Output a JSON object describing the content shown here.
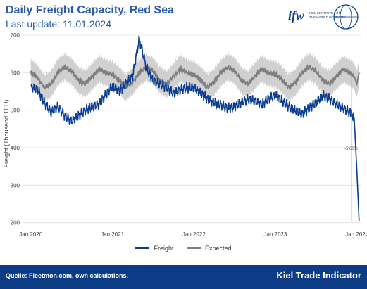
{
  "header": {
    "title": "Daily Freight Capacity, Red Sea",
    "subtitle": "Last update: 11.01.2024",
    "logo_mark": "ifw",
    "logo_text_line1": "KIEL INSTITUTE FOR",
    "logo_text_line2": "THE WORLD ECONOMY"
  },
  "footer": {
    "source": "Quelle: Fleetmon.com, own calculations.",
    "brand": "Kiel Trade Indicator"
  },
  "colors": {
    "freight": "#0b3d91",
    "expected": "#7f7f7f",
    "band": "#c8c8c8",
    "footer_bg": "#0c3c86"
  },
  "chart_data": {
    "type": "line",
    "ylabel": "Freight (Thousand TEU)",
    "ylim": [
      190,
      700
    ],
    "yticks": [
      200,
      300,
      400,
      500,
      600,
      700
    ],
    "xticks": [
      "Jan 2020",
      "Jan 2021",
      "Jan 2022",
      "Jan 2023",
      "Jan 2024"
    ],
    "annotation": "-5.60%",
    "series": [
      {
        "name": "Freight",
        "x": [
          "2020-01-01",
          "2020-02-01",
          "2020-03-01",
          "2020-04-01",
          "2020-05-01",
          "2020-06-01",
          "2020-07-01",
          "2020-08-01",
          "2020-09-01",
          "2020-10-01",
          "2020-11-01",
          "2020-12-01",
          "2021-01-01",
          "2021-02-01",
          "2021-03-01",
          "2021-04-01",
          "2021-05-01",
          "2021-06-01",
          "2021-07-01",
          "2021-08-01",
          "2021-09-01",
          "2021-10-01",
          "2021-11-01",
          "2021-12-01",
          "2022-01-01",
          "2022-02-01",
          "2022-03-01",
          "2022-04-01",
          "2022-05-01",
          "2022-06-01",
          "2022-07-01",
          "2022-08-01",
          "2022-09-01",
          "2022-10-01",
          "2022-11-01",
          "2022-12-01",
          "2023-01-01",
          "2023-02-01",
          "2023-03-01",
          "2023-04-01",
          "2023-05-01",
          "2023-06-01",
          "2023-07-01",
          "2023-08-01",
          "2023-09-01",
          "2023-10-01",
          "2023-11-01",
          "2023-12-01",
          "2023-12-20",
          "2024-01-01",
          "2024-01-11"
        ],
        "values": [
          560,
          555,
          520,
          495,
          510,
          485,
          470,
          485,
          500,
          510,
          515,
          540,
          565,
          550,
          570,
          590,
          690,
          615,
          580,
          570,
          560,
          545,
          555,
          560,
          560,
          545,
          530,
          520,
          515,
          505,
          510,
          520,
          530,
          525,
          515,
          530,
          540,
          525,
          510,
          500,
          490,
          505,
          520,
          540,
          530,
          515,
          505,
          495,
          480,
          340,
          205
        ]
      },
      {
        "name": "Expected",
        "x": [
          "2020-01-01",
          "2020-02-01",
          "2020-03-01",
          "2020-04-01",
          "2020-05-01",
          "2020-06-01",
          "2020-07-01",
          "2020-08-01",
          "2020-09-01",
          "2020-10-01",
          "2020-11-01",
          "2020-12-01",
          "2021-01-01",
          "2021-02-01",
          "2021-03-01",
          "2021-04-01",
          "2021-05-01",
          "2021-06-01",
          "2021-07-01",
          "2021-08-01",
          "2021-09-01",
          "2021-10-01",
          "2021-11-01",
          "2021-12-01",
          "2022-01-01",
          "2022-02-01",
          "2022-03-01",
          "2022-04-01",
          "2022-05-01",
          "2022-06-01",
          "2022-07-01",
          "2022-08-01",
          "2022-09-01",
          "2022-10-01",
          "2022-11-01",
          "2022-12-01",
          "2023-01-01",
          "2023-02-01",
          "2023-03-01",
          "2023-04-01",
          "2023-05-01",
          "2023-06-01",
          "2023-07-01",
          "2023-08-01",
          "2023-09-01",
          "2023-10-01",
          "2023-11-01",
          "2023-12-01",
          "2023-12-20",
          "2024-01-01",
          "2024-01-11"
        ],
        "values": [
          600,
          585,
          560,
          570,
          600,
          615,
          605,
          580,
          570,
          590,
          610,
          600,
          595,
          580,
          560,
          575,
          600,
          615,
          605,
          580,
          570,
          590,
          610,
          600,
          595,
          580,
          560,
          575,
          600,
          615,
          605,
          580,
          570,
          590,
          610,
          600,
          595,
          580,
          560,
          575,
          600,
          615,
          605,
          580,
          570,
          590,
          610,
          600,
          590,
          570,
          600
        ]
      }
    ],
    "band_width": 35
  }
}
